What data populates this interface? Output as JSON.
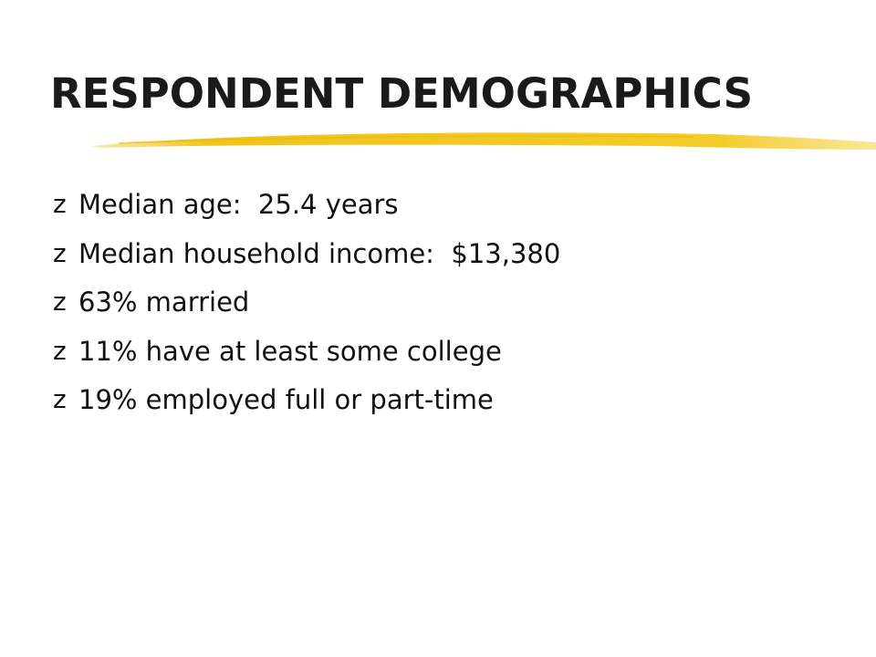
{
  "header": {
    "title": "RESPONDENT DEMOGRAPHICS"
  },
  "bullet": "z",
  "items": [
    "Median age:  25.4 years",
    "Median household income:  $13,380",
    "63% married",
    "11% have at least some college",
    "19% employed full or part-time"
  ]
}
